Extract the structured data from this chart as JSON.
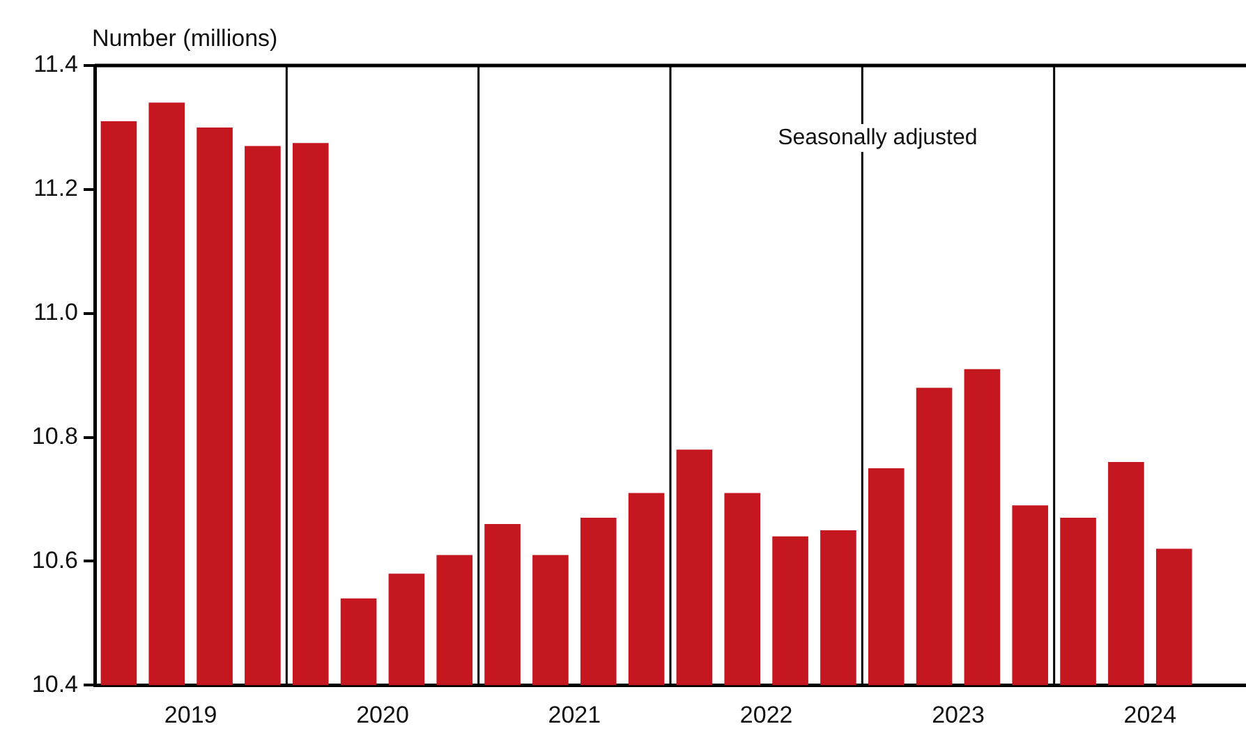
{
  "chart_data": {
    "type": "bar",
    "ylabel": "Number (millions)",
    "annotations": [
      "Seasonally adjusted"
    ],
    "x": [
      2019.125,
      2019.375,
      2019.625,
      2019.875,
      2020.125,
      2020.375,
      2020.625,
      2020.875,
      2021.125,
      2021.375,
      2021.625,
      2021.875,
      2022.125,
      2022.375,
      2022.625,
      2022.875,
      2023.125,
      2023.375,
      2023.625,
      2023.875,
      2024.125,
      2024.375,
      2024.625
    ],
    "values": [
      11.31,
      11.34,
      11.3,
      11.27,
      11.275,
      10.54,
      10.58,
      10.61,
      10.66,
      10.61,
      10.67,
      10.71,
      10.78,
      10.71,
      10.64,
      10.65,
      10.75,
      10.88,
      10.91,
      10.69,
      10.67,
      10.76,
      10.62
    ],
    "color": "#c4171f",
    "xlim": [
      2019,
      2025
    ],
    "xticks": [
      {
        "value": 2019.5,
        "label": "2019"
      },
      {
        "value": 2020.5,
        "label": "2020"
      },
      {
        "value": 2021.5,
        "label": "2021"
      },
      {
        "value": 2022.5,
        "label": "2022"
      },
      {
        "value": 2023.5,
        "label": "2023"
      },
      {
        "value": 2024.5,
        "label": "2024"
      }
    ],
    "ylim": [
      10.4,
      11.4
    ],
    "yticks": [
      10.4,
      10.6,
      10.8,
      {
        "value": 11,
        "label": "11.0"
      },
      11.2,
      11.4
    ],
    "ref_lines": [
      {
        "axis": "x",
        "value": 2020,
        "label": null
      },
      {
        "axis": "x",
        "value": 2021,
        "label": null
      },
      {
        "axis": "x",
        "value": 2022,
        "label": null
      },
      {
        "axis": "x",
        "value": 2023,
        "label": null
      },
      {
        "axis": "x",
        "value": 2024,
        "label": null
      }
    ],
    "grid": false,
    "legend": false
  }
}
